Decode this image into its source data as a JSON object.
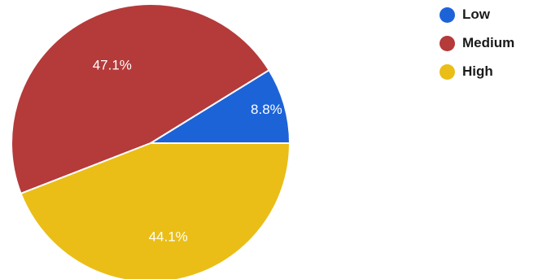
{
  "chart_data": {
    "type": "pie",
    "title": "",
    "start_angle_deg": 0,
    "direction": "counterclockwise",
    "legend_position": "top-right",
    "slices": [
      {
        "label": "Low",
        "value": 8.8,
        "display": "8.8%",
        "color": "#1c63d8"
      },
      {
        "label": "Medium",
        "value": 47.1,
        "display": "47.1%",
        "color": "#b53a3a"
      },
      {
        "label": "High",
        "value": 44.1,
        "display": "44.1%",
        "color": "#eabe16"
      }
    ]
  },
  "legend": {
    "items": [
      {
        "label": "Low",
        "color": "#1c63d8"
      },
      {
        "label": "Medium",
        "color": "#b53a3a"
      },
      {
        "label": "High",
        "color": "#eabe16"
      }
    ]
  }
}
